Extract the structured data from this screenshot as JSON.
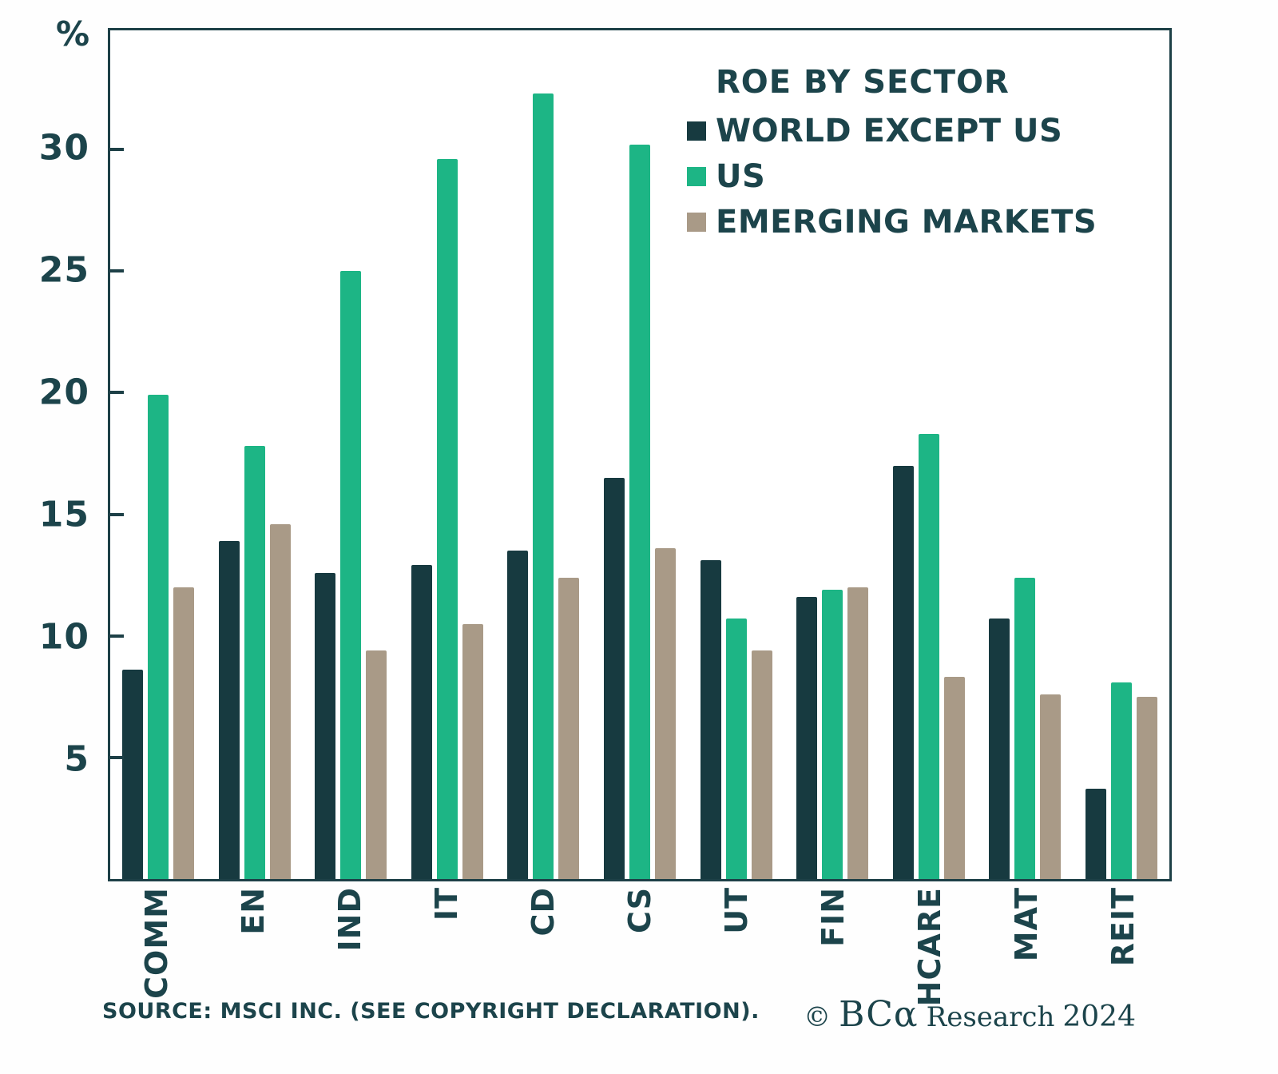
{
  "chart_data": {
    "type": "bar",
    "title": "ROE BY SECTOR",
    "unit": "%",
    "categories": [
      "COMM",
      "EN",
      "IND",
      "IT",
      "CD",
      "CS",
      "UT",
      "FIN",
      "HCARE",
      "MAT",
      "REIT"
    ],
    "series": [
      {
        "name": "WORLD EXCEPT US",
        "color": "#173a40",
        "values": [
          8.6,
          13.9,
          12.6,
          12.9,
          13.5,
          16.5,
          13.1,
          11.6,
          17.0,
          10.7,
          3.7
        ]
      },
      {
        "name": "US",
        "color": "#1db585",
        "values": [
          19.9,
          17.8,
          25.0,
          29.6,
          32.3,
          30.2,
          10.7,
          11.9,
          18.3,
          12.4,
          8.1
        ]
      },
      {
        "name": "EMERGING MARKETS",
        "color": "#a99a87",
        "values": [
          12.0,
          14.6,
          9.4,
          10.5,
          12.4,
          13.6,
          9.4,
          12.0,
          8.3,
          7.6,
          7.5
        ]
      }
    ],
    "yticks": [
      5,
      10,
      15,
      20,
      25,
      30
    ],
    "ylim": [
      0,
      34.9
    ],
    "grid": false,
    "legend_position": "top-right-inside",
    "axis_color": "#1d4047",
    "text_color": "#1c444b"
  },
  "footer": {
    "source": "SOURCE: MSCI INC. (SEE COPYRIGHT DECLARATION).",
    "credit_copyright": "©",
    "credit_brand": "BCα",
    "credit_name": "Research",
    "credit_year": "2024"
  }
}
